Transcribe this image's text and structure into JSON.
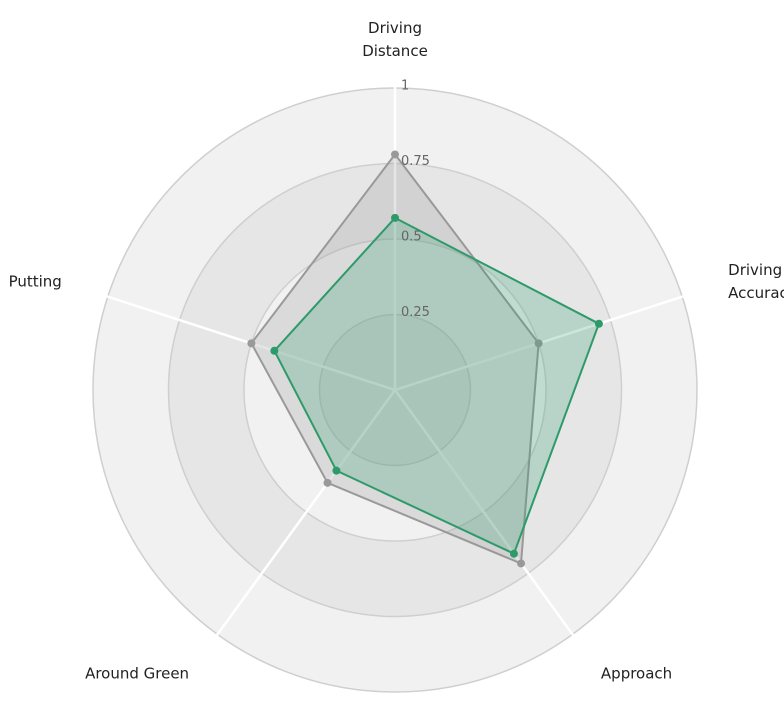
{
  "chart_data": {
    "type": "radar",
    "axes": [
      {
        "label_lines": [
          "Driving",
          "Distance"
        ]
      },
      {
        "label_lines": [
          "Driving",
          "Accuracy"
        ]
      },
      {
        "label_lines": [
          "Approach"
        ]
      },
      {
        "label_lines": [
          "Around Green"
        ]
      },
      {
        "label_lines": [
          "Putting"
        ]
      }
    ],
    "ticks": [
      {
        "value": 0.25,
        "label": "0.25"
      },
      {
        "value": 0.5,
        "label": "0.5"
      },
      {
        "value": 0.75,
        "label": "0.75"
      },
      {
        "value": 1,
        "label": "1"
      }
    ],
    "range": [
      0,
      1
    ],
    "series": [
      {
        "values": [
          0.78,
          0.5,
          0.71,
          0.38,
          0.5
        ],
        "color": "#999999"
      },
      {
        "values": [
          0.57,
          0.71,
          0.67,
          0.33,
          0.42
        ],
        "color": "#2e9a6a"
      }
    ],
    "colors": {
      "ring_outer": "#f1f1f1",
      "ring_inner": "#e6e6e6",
      "ring_stroke": "#cfcfcf",
      "spoke": "#ffffff"
    }
  }
}
